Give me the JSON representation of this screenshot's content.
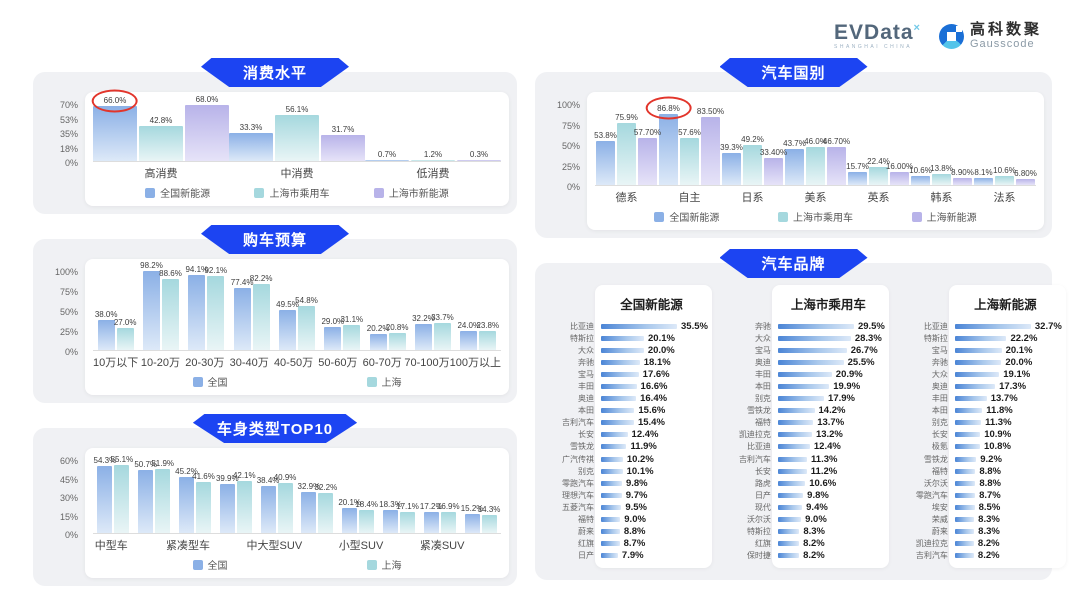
{
  "logo": {
    "evdata": "EVData",
    "evdata_sup": "×",
    "evdata_sub": "SHANGHAI CHINA",
    "gausscode_cn": "高科数聚",
    "gausscode_en": "Gausscode"
  },
  "palette": {
    "banner_blue": "#1c44f2",
    "annotation_red": "#e2352b",
    "series_colors": {
      "blue": {
        "top": "#8bb0e6",
        "bottom": "#dde9f8"
      },
      "teal": {
        "top": "#a5d8de",
        "bottom": "#e9f5f6"
      },
      "purple": {
        "top": "#b8b3e9",
        "bottom": "#e6e3f8"
      }
    }
  },
  "chart_data": [
    {
      "id": "consumption",
      "type": "bar",
      "title": "消费水平",
      "xlabel": "",
      "ylabel": "",
      "ylim": [
        0,
        70
      ],
      "y_max": 70,
      "y_ticks": [
        "70%",
        "53%",
        "35%",
        "18%",
        "0%"
      ],
      "grid": false,
      "legend_position": "bottom",
      "categories": [
        "高消费",
        "中消费",
        "低消费"
      ],
      "series": [
        {
          "name": "全国新能源",
          "color": "blue",
          "labels": [
            "66.0%",
            "33.3%",
            "0.7%"
          ]
        },
        {
          "name": "上海市乘用车",
          "color": "teal",
          "labels": [
            "42.8%",
            "56.1%",
            "1.2%"
          ]
        },
        {
          "name": "上海市新能源",
          "color": "purple",
          "labels": [
            "68.0%",
            "31.7%",
            "0.3%"
          ]
        }
      ],
      "annotation": {
        "type": "red-circle",
        "series": 0,
        "category": 0,
        "value": "66.0%"
      }
    },
    {
      "id": "budget",
      "type": "bar",
      "title": "购车预算",
      "xlabel": "",
      "ylabel": "",
      "ylim": [
        0,
        100
      ],
      "y_max": 100,
      "y_ticks": [
        "100%",
        "75%",
        "50%",
        "25%",
        "0%"
      ],
      "grid": false,
      "legend_position": "bottom",
      "categories": [
        "10万以下",
        "10-20万",
        "20-30万",
        "30-40万",
        "40-50万",
        "50-60万",
        "60-70万",
        "70-100万",
        "100万以上"
      ],
      "series": [
        {
          "name": "全国",
          "color": "blue",
          "labels": [
            "38.0%",
            "98.2%",
            "94.1%",
            "77.4%",
            "49.5%",
            "29.0%",
            "20.2%",
            "32.2%",
            "24.0%"
          ]
        },
        {
          "name": "上海",
          "color": "teal",
          "labels": [
            "27.0%",
            "88.6%",
            "92.1%",
            "82.2%",
            "54.8%",
            "31.1%",
            "20.8%",
            "33.7%",
            "23.8%"
          ]
        }
      ]
    },
    {
      "id": "body_type",
      "type": "bar",
      "title": "车身类型TOP10",
      "xlabel": "",
      "ylabel": "",
      "ylim": [
        0,
        60
      ],
      "y_max": 60,
      "y_ticks": [
        "60%",
        "45%",
        "30%",
        "15%",
        "0%"
      ],
      "grid": false,
      "legend_position": "bottom",
      "categories": [
        "中型车",
        "",
        "紧凑型车",
        "",
        "中大型SUV",
        "",
        "小型SUV",
        "",
        "紧凑SUV",
        ""
      ],
      "series": [
        {
          "name": "全国",
          "color": "blue",
          "labels": [
            "54.3%",
            "50.7%",
            "45.2%",
            "39.9%",
            "38.4%",
            "32.9%",
            "20.1%",
            "18.3%",
            "17.2%",
            "15.2%"
          ]
        },
        {
          "name": "上海",
          "color": "teal",
          "labels": [
            "55.1%",
            "51.9%",
            "41.6%",
            "42.1%",
            "40.9%",
            "32.2%",
            "18.4%",
            "17.1%",
            "16.9%",
            "14.3%"
          ]
        }
      ]
    },
    {
      "id": "country",
      "type": "bar",
      "title": "汽车国别",
      "xlabel": "",
      "ylabel": "",
      "ylim": [
        0,
        100
      ],
      "y_max": 100,
      "y_ticks": [
        "100%",
        "75%",
        "50%",
        "25%",
        "0%"
      ],
      "grid": false,
      "legend_position": "bottom",
      "categories": [
        "德系",
        "自主",
        "日系",
        "美系",
        "英系",
        "韩系",
        "法系"
      ],
      "series": [
        {
          "name": "全国新能源",
          "color": "blue",
          "labels": [
            "53.8%",
            "86.8%",
            "39.3%",
            "43.7%",
            "15.7%",
            "10.6%",
            "8.1%"
          ]
        },
        {
          "name": "上海市乘用车",
          "color": "teal",
          "labels": [
            "75.9%",
            "57.6%",
            "49.2%",
            "46.0%",
            "22.4%",
            "13.8%",
            "10.6%"
          ]
        },
        {
          "name": "上海新能源",
          "color": "purple",
          "labels": [
            "57.70%",
            "83.50%",
            "33.40%",
            "46.70%",
            "16.00%",
            "8.90%",
            "6.80%"
          ]
        }
      ],
      "annotation": {
        "type": "red-circle",
        "series": 0,
        "category": 1,
        "value": "86.8%"
      }
    },
    {
      "id": "brands",
      "type": "table",
      "title": "汽车品牌",
      "lists": [
        {
          "title": "全国新能源",
          "items": [
            [
              "比亚迪",
              "35.5%"
            ],
            [
              "特斯拉",
              "20.1%"
            ],
            [
              "大众",
              "20.0%"
            ],
            [
              "奔驰",
              "18.1%"
            ],
            [
              "宝马",
              "17.6%"
            ],
            [
              "丰田",
              "16.6%"
            ],
            [
              "奥迪",
              "16.4%"
            ],
            [
              "本田",
              "15.6%"
            ],
            [
              "吉利汽车",
              "15.4%"
            ],
            [
              "长安",
              "12.4%"
            ],
            [
              "雪铁龙",
              "11.9%"
            ],
            [
              "广汽传祺",
              "10.2%"
            ],
            [
              "别克",
              "10.1%"
            ],
            [
              "零跑汽车",
              "9.8%"
            ],
            [
              "理想汽车",
              "9.7%"
            ],
            [
              "五菱汽车",
              "9.5%"
            ],
            [
              "福特",
              "9.0%"
            ],
            [
              "蔚来",
              "8.8%"
            ],
            [
              "红旗",
              "8.7%"
            ],
            [
              "日产",
              "7.9%"
            ]
          ]
        },
        {
          "title": "上海市乘用车",
          "items": [
            [
              "奔驰",
              "29.5%"
            ],
            [
              "大众",
              "28.3%"
            ],
            [
              "宝马",
              "26.7%"
            ],
            [
              "奥迪",
              "25.5%"
            ],
            [
              "丰田",
              "20.9%"
            ],
            [
              "本田",
              "19.9%"
            ],
            [
              "别克",
              "17.9%"
            ],
            [
              "雪铁龙",
              "14.2%"
            ],
            [
              "福特",
              "13.7%"
            ],
            [
              "凯迪拉克",
              "13.2%"
            ],
            [
              "比亚迪",
              "12.4%"
            ],
            [
              "吉利汽车",
              "11.3%"
            ],
            [
              "长安",
              "11.2%"
            ],
            [
              "路虎",
              "10.6%"
            ],
            [
              "日产",
              "9.8%"
            ],
            [
              "现代",
              "9.4%"
            ],
            [
              "沃尔沃",
              "9.0%"
            ],
            [
              "特斯拉",
              "8.3%"
            ],
            [
              "红旗",
              "8.2%"
            ],
            [
              "保时捷",
              "8.2%"
            ]
          ]
        },
        {
          "title": "上海新能源",
          "items": [
            [
              "比亚迪",
              "32.7%"
            ],
            [
              "特斯拉",
              "22.2%"
            ],
            [
              "宝马",
              "20.1%"
            ],
            [
              "奔驰",
              "20.0%"
            ],
            [
              "大众",
              "19.1%"
            ],
            [
              "奥迪",
              "17.3%"
            ],
            [
              "丰田",
              "13.7%"
            ],
            [
              "本田",
              "11.8%"
            ],
            [
              "别克",
              "11.3%"
            ],
            [
              "长安",
              "10.9%"
            ],
            [
              "极氪",
              "10.8%"
            ],
            [
              "雪铁龙",
              "9.2%"
            ],
            [
              "福特",
              "8.8%"
            ],
            [
              "沃尔沃",
              "8.8%"
            ],
            [
              "零跑汽车",
              "8.7%"
            ],
            [
              "埃安",
              "8.5%"
            ],
            [
              "荣威",
              "8.3%"
            ],
            [
              "蔚来",
              "8.3%"
            ],
            [
              "凯迪拉克",
              "8.2%"
            ],
            [
              "吉利汽车",
              "8.2%"
            ]
          ]
        }
      ]
    }
  ]
}
